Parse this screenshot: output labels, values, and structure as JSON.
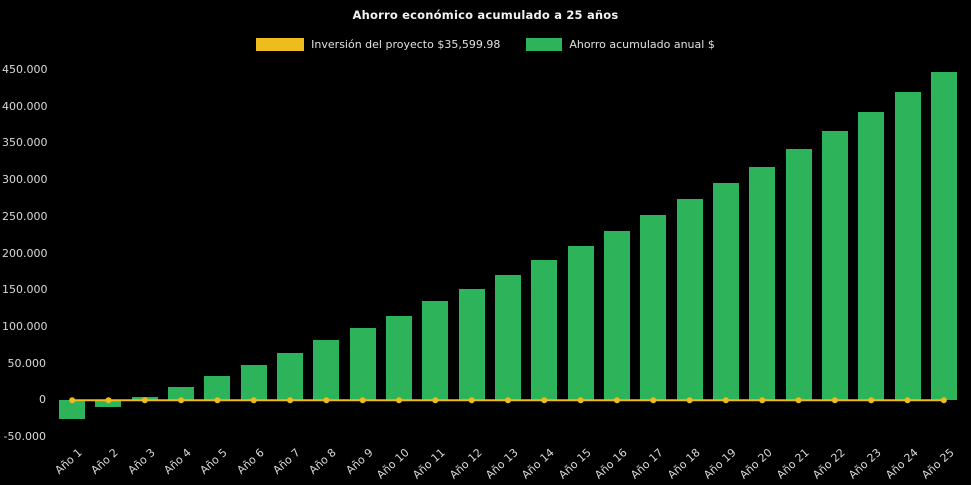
{
  "page": {
    "background_color": "#000000",
    "text_color": "#d9d9d9"
  },
  "chart_data": {
    "type": "bar",
    "title": "Ahorro económico acumulado a 25 años",
    "categories": [
      "Año 1",
      "Año 2",
      "Año 3",
      "Año 4",
      "Año 5",
      "Año 6",
      "Año 7",
      "Año 8",
      "Año 9",
      "Año 10",
      "Año 11",
      "Año 12",
      "Año 13",
      "Año 14",
      "Año 15",
      "Año 16",
      "Año 17",
      "Año 18",
      "Año 19",
      "Año 20",
      "Año 21",
      "Año 22",
      "Año 23",
      "Año 24",
      "Año 25"
    ],
    "series": [
      {
        "name": "Inversión del proyecto $35,599.98",
        "type": "line",
        "color": "#eebc1c",
        "marker": "circle",
        "constant_value": 0
      },
      {
        "name": "Ahorro acumulado anual $",
        "type": "bar",
        "color": "#2db45b",
        "values": [
          -26000,
          -9000,
          5000,
          18000,
          33000,
          48000,
          65000,
          82000,
          98000,
          115000,
          135000,
          152000,
          171000,
          191000,
          210000,
          231000,
          252000,
          274000,
          296000,
          318000,
          342000,
          367000,
          393000,
          420000,
          447000
        ]
      }
    ],
    "ylim": [
      -50000,
      450000
    ],
    "ytick_step": 50000,
    "ytick_labels": [
      "-50.000",
      "0",
      "50.000",
      "100.000",
      "150.000",
      "200.000",
      "250.000",
      "300.000",
      "350.000",
      "400.000",
      "450.000"
    ],
    "xlabel": "",
    "ylabel": "",
    "grid": false,
    "legend_position": "top-center"
  }
}
